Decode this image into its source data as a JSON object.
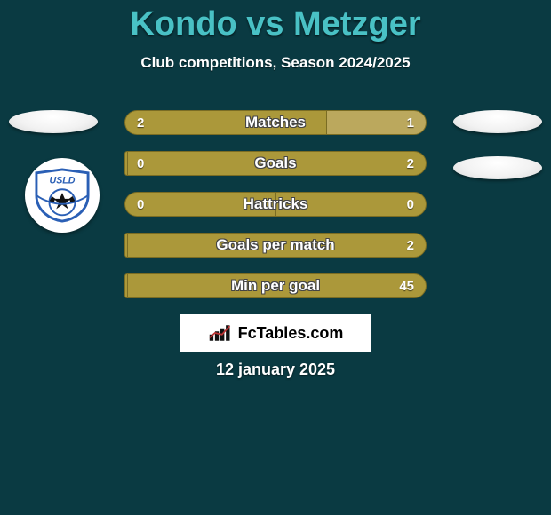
{
  "colors": {
    "background": "#0a3a42",
    "title": "#49c1c5",
    "text": "#ffffff",
    "olive": "#ab983a",
    "olive_border": "#7a6c23",
    "light_olive": "#bba85d",
    "wm_bg": "#ffffff",
    "wm_text": "#000000"
  },
  "title": "Kondo vs Metzger",
  "subtitle": "Club competitions, Season 2024/2025",
  "crest_text": "USLD",
  "bars": [
    {
      "label": "Matches",
      "left_val": "2",
      "right_val": "1",
      "left_pct": 66.7,
      "left_color": "#ab983a",
      "right_color": "#bba85d"
    },
    {
      "label": "Goals",
      "left_val": "0",
      "right_val": "2",
      "left_pct": 1,
      "left_color": "#ab983a",
      "right_color": "#ab983a"
    },
    {
      "label": "Hattricks",
      "left_val": "0",
      "right_val": "0",
      "left_pct": 50,
      "left_color": "#ab983a",
      "right_color": "#ab983a"
    },
    {
      "label": "Goals per match",
      "left_val": "",
      "right_val": "2",
      "left_pct": 1,
      "left_color": "#ab983a",
      "right_color": "#ab983a"
    },
    {
      "label": "Min per goal",
      "left_val": "",
      "right_val": "45",
      "left_pct": 1,
      "left_color": "#ab983a",
      "right_color": "#ab983a"
    }
  ],
  "watermark": "FcTables.com",
  "date": "12 january 2025"
}
